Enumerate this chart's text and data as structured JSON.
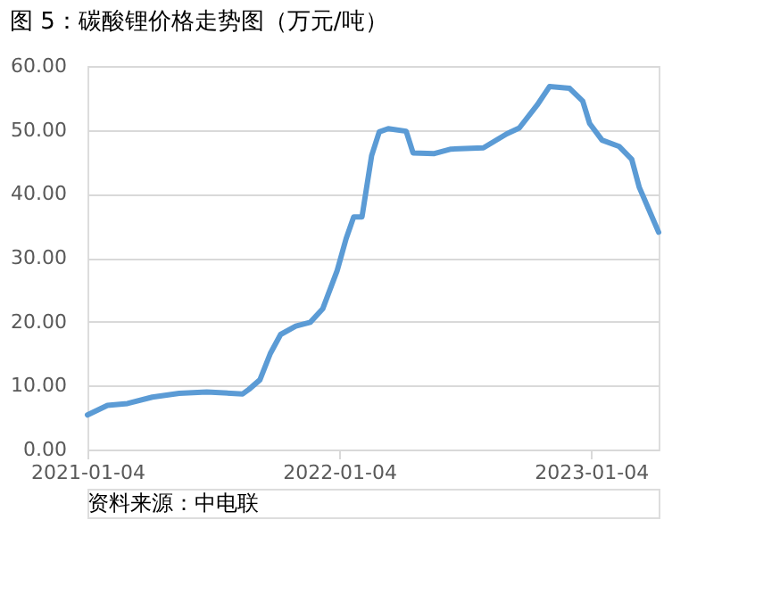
{
  "chart_data": {
    "type": "line",
    "title": "图 5：碳酸锂价格走势图（万元/吨）",
    "x": [
      "2021-01-04",
      "2021-02-02",
      "2021-03-03",
      "2021-04-08",
      "2021-05-17",
      "2021-06-26",
      "2021-08-17",
      "2021-08-26",
      "2021-09-11",
      "2021-09-26",
      "2021-10-11",
      "2021-11-02",
      "2021-11-23",
      "2021-12-11",
      "2022-01-01",
      "2022-01-14",
      "2022-01-25",
      "2022-02-06",
      "2022-02-20",
      "2022-03-03",
      "2022-03-16",
      "2022-04-11",
      "2022-04-21",
      "2022-05-22",
      "2022-06-15",
      "2022-08-01",
      "2022-09-04",
      "2022-09-22",
      "2022-10-18",
      "2022-11-05",
      "2022-12-04",
      "2022-12-23",
      "2023-01-02",
      "2023-01-20",
      "2023-02-14",
      "2023-03-04",
      "2023-03-15",
      "2023-03-29",
      "2023-04-12"
    ],
    "series": [
      {
        "color": "#5b9bd5",
        "values": [
          5.4,
          6.9,
          7.2,
          8.2,
          8.8,
          9.0,
          8.7,
          9.4,
          10.9,
          15,
          18,
          19.3,
          19.9,
          22,
          28,
          33,
          36.4,
          36.4,
          46,
          49.7,
          50.2,
          49.8,
          46.4,
          46.3,
          47,
          47.2,
          49.4,
          50.3,
          53.9,
          56.8,
          56.5,
          54.5,
          51,
          48.4,
          47.4,
          45.4,
          41,
          37.5,
          34
        ]
      }
    ],
    "xlim": [
      "2021-01-04",
      "2023-04-12"
    ],
    "xticks": [
      "2021-01-04",
      "2022-01-04",
      "2023-01-04"
    ],
    "ylim": [
      0,
      60
    ],
    "yticks": [
      {
        "value": 0,
        "label": "0.00"
      },
      {
        "value": 10,
        "label": "10.00"
      },
      {
        "value": 20,
        "label": "20.00"
      },
      {
        "value": 30,
        "label": "30.00"
      },
      {
        "value": 40,
        "label": "40.00"
      },
      {
        "value": 50,
        "label": "50.00"
      },
      {
        "value": 60,
        "label": "60.00"
      }
    ],
    "grid": "y",
    "legend": false,
    "marker": "none",
    "line_style": "solid",
    "annotations": [
      "资料来源：中电联"
    ]
  }
}
